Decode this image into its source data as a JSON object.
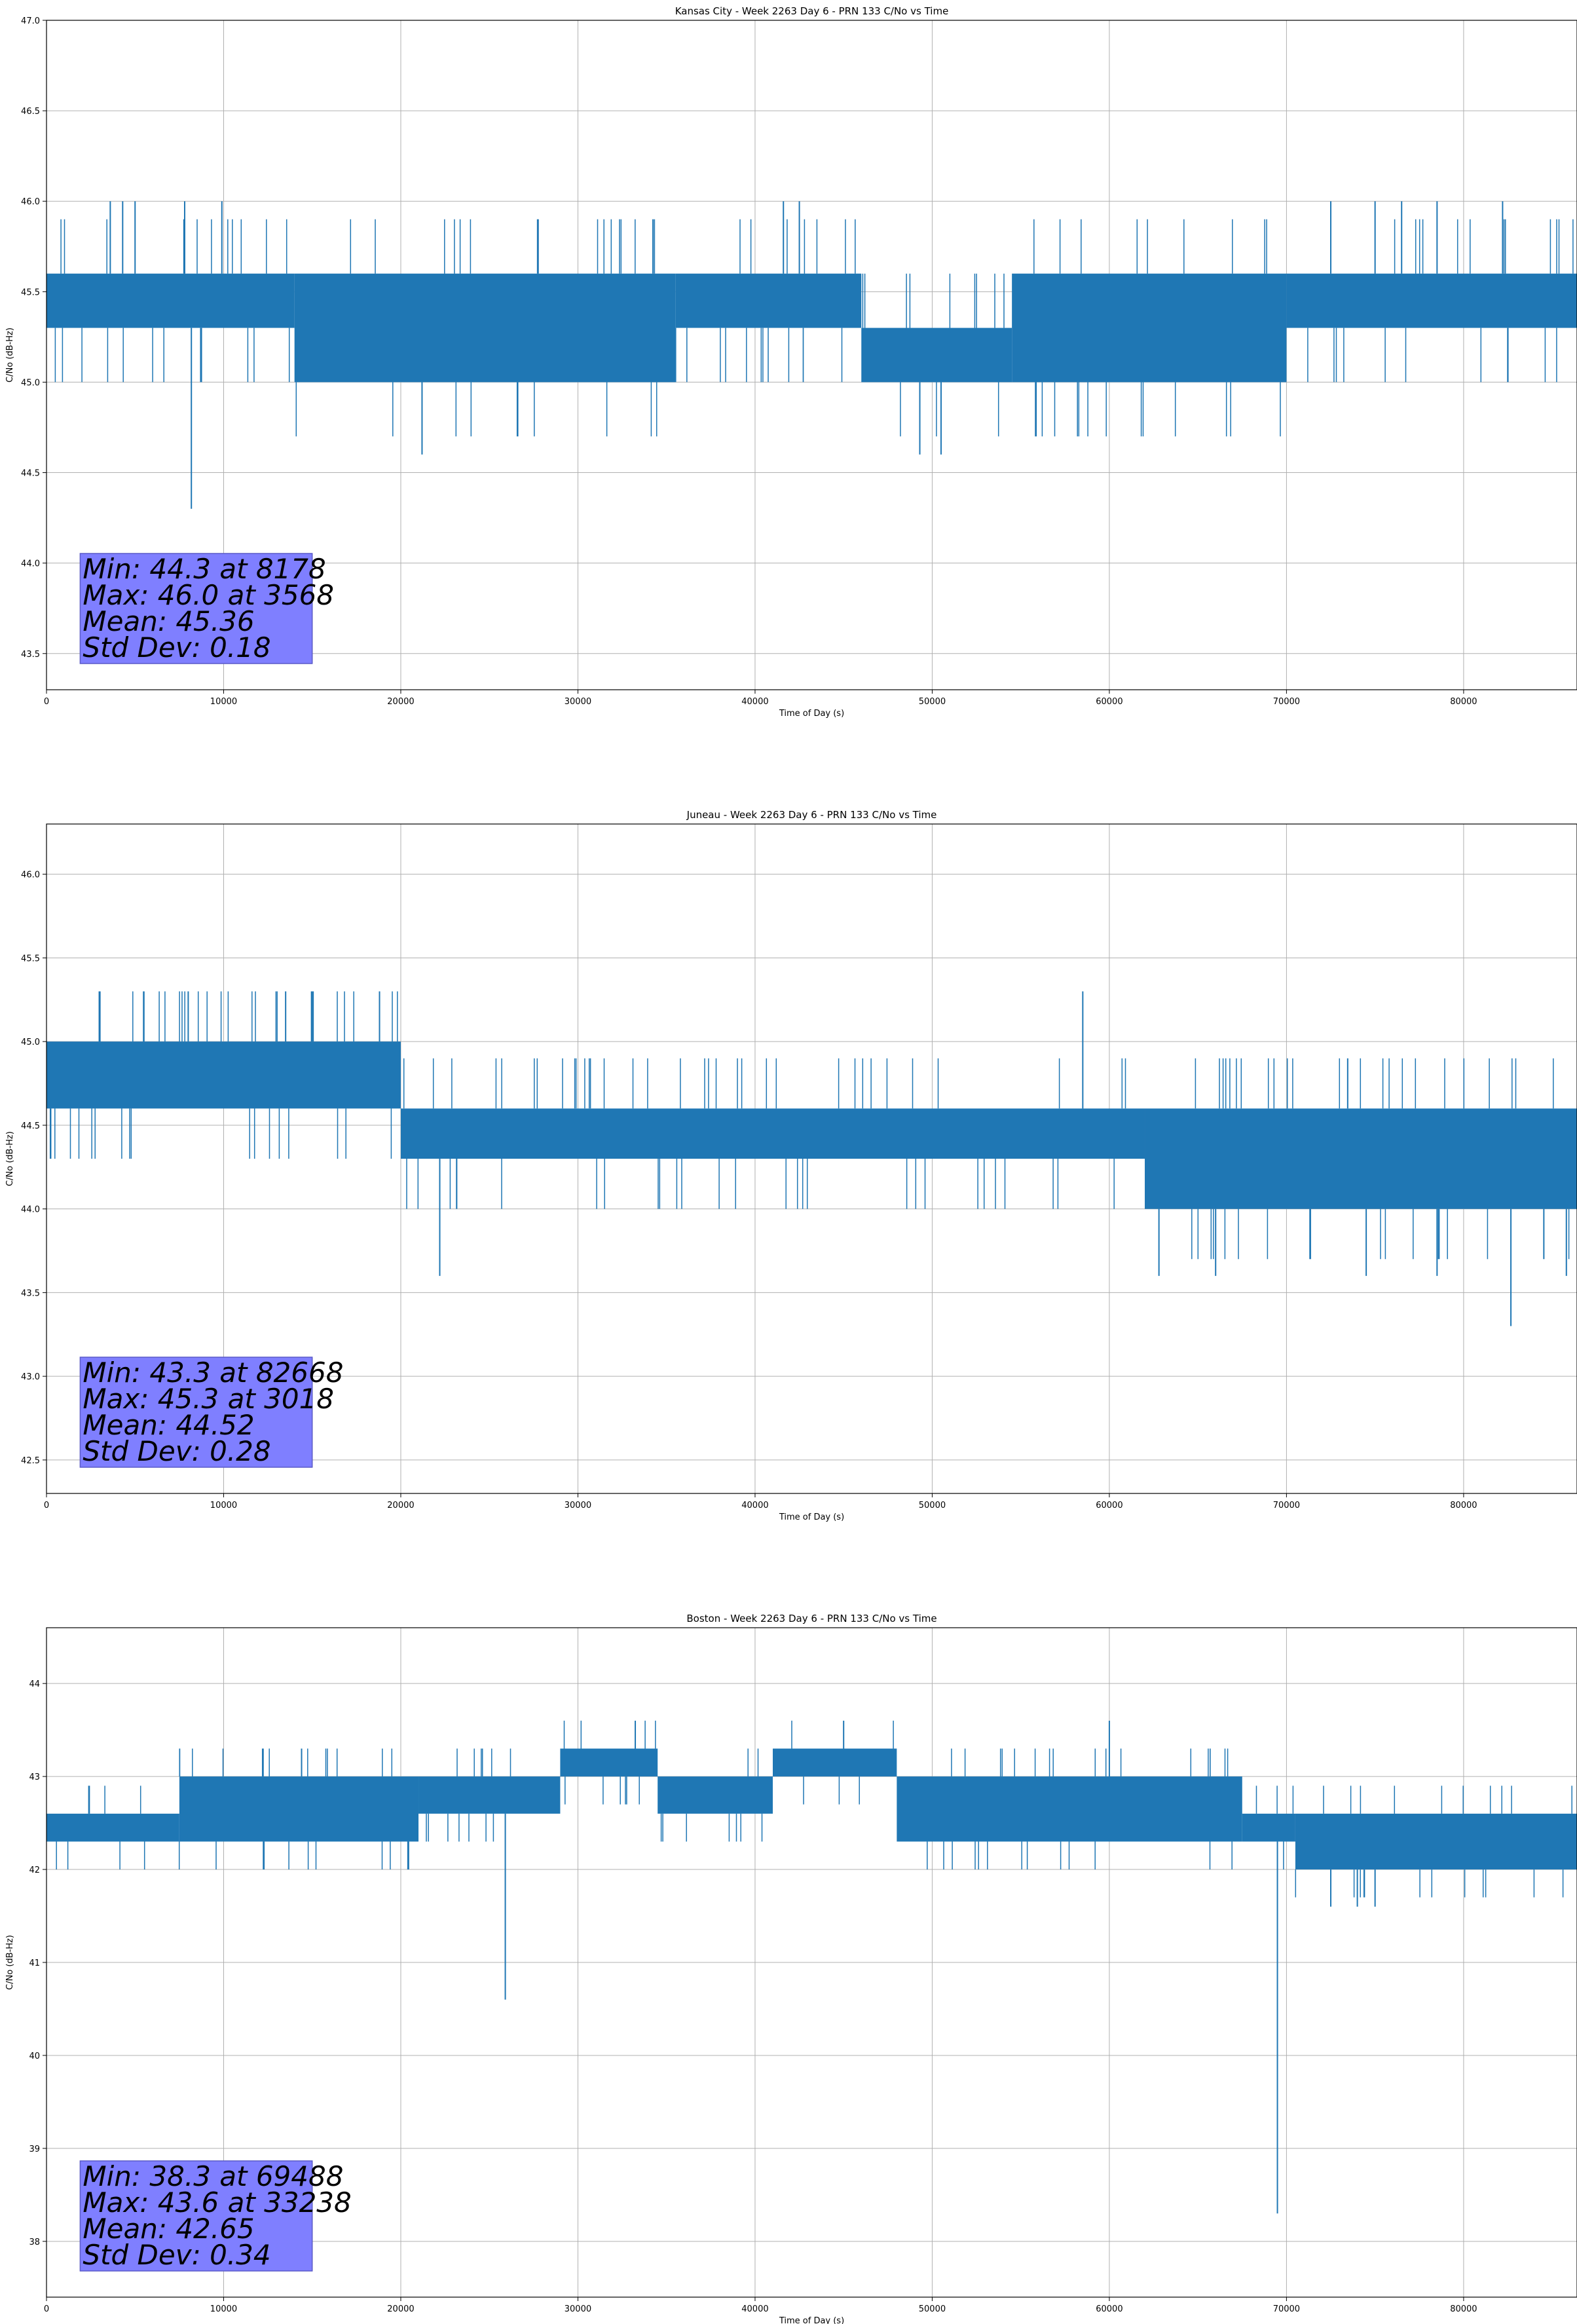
{
  "chart_data": [
    {
      "type": "line",
      "title": "Kansas City - Week 2263 Day 6 - PRN 133 C/No vs Time",
      "xlabel": "Time of Day (s)",
      "ylabel": "C/No (dB-Hz)",
      "xlim": [
        0,
        86400
      ],
      "ylim": [
        43.3,
        47.0
      ],
      "xticks": [
        0,
        10000,
        20000,
        30000,
        40000,
        50000,
        60000,
        70000,
        80000
      ],
      "yticks": [
        43.5,
        44.0,
        44.5,
        45.0,
        45.5,
        46.0,
        46.5,
        47.0
      ],
      "ytick_decimals": 1,
      "grid": true,
      "series_color": "#1f77b4",
      "band_segments": [
        {
          "x0": 0,
          "x1": 14000,
          "lo": 45.3,
          "hi": 45.6
        },
        {
          "x0": 14000,
          "x1": 35500,
          "lo": 45.0,
          "hi": 45.6
        },
        {
          "x0": 35500,
          "x1": 46000,
          "lo": 45.3,
          "hi": 45.6
        },
        {
          "x0": 46000,
          "x1": 54500,
          "lo": 45.0,
          "hi": 45.3
        },
        {
          "x0": 54500,
          "x1": 70000,
          "lo": 45.0,
          "hi": 45.6
        },
        {
          "x0": 70000,
          "x1": 86400,
          "lo": 45.3,
          "hi": 45.6
        }
      ],
      "spikes": [
        {
          "x": 3600,
          "y": 46.0
        },
        {
          "x": 4300,
          "y": 46.0
        },
        {
          "x": 5000,
          "y": 46.0
        },
        {
          "x": 7800,
          "y": 46.0
        },
        {
          "x": 9900,
          "y": 46.0
        },
        {
          "x": 8178,
          "y": 44.3
        },
        {
          "x": 21200,
          "y": 44.6
        },
        {
          "x": 41600,
          "y": 46.0
        },
        {
          "x": 42500,
          "y": 46.0
        },
        {
          "x": 49300,
          "y": 44.6
        },
        {
          "x": 50500,
          "y": 44.6
        },
        {
          "x": 72500,
          "y": 46.0
        },
        {
          "x": 75000,
          "y": 46.0
        },
        {
          "x": 76500,
          "y": 46.0
        },
        {
          "x": 78500,
          "y": 46.0
        },
        {
          "x": 82200,
          "y": 46.0
        }
      ],
      "stats": {
        "lines": [
          "Min: 44.3 at 8178",
          "Max: 46.0 at 3568",
          "Mean: 45.36",
          "Std Dev: 0.18"
        ],
        "box_color": "#7f7fff"
      }
    },
    {
      "type": "line",
      "title": "Juneau - Week 2263 Day 6 - PRN 133 C/No vs Time",
      "xlabel": "Time of Day (s)",
      "ylabel": "C/No (dB-Hz)",
      "xlim": [
        0,
        86400
      ],
      "ylim": [
        42.3,
        46.3
      ],
      "xticks": [
        0,
        10000,
        20000,
        30000,
        40000,
        50000,
        60000,
        70000,
        80000
      ],
      "yticks": [
        42.5,
        43.0,
        43.5,
        44.0,
        44.5,
        45.0,
        45.5,
        46.0
      ],
      "ytick_decimals": 1,
      "grid": true,
      "series_color": "#1f77b4",
      "band_segments": [
        {
          "x0": 0,
          "x1": 20000,
          "lo": 44.6,
          "hi": 45.0
        },
        {
          "x0": 20000,
          "x1": 62000,
          "lo": 44.3,
          "hi": 44.6
        },
        {
          "x0": 62000,
          "x1": 86400,
          "lo": 44.0,
          "hi": 44.6
        }
      ],
      "spikes": [
        {
          "x": 3018,
          "y": 45.3
        },
        {
          "x": 5500,
          "y": 45.3
        },
        {
          "x": 8000,
          "y": 45.3
        },
        {
          "x": 13500,
          "y": 45.3
        },
        {
          "x": 15000,
          "y": 45.3
        },
        {
          "x": 18800,
          "y": 45.3
        },
        {
          "x": 22200,
          "y": 43.6
        },
        {
          "x": 58500,
          "y": 45.3
        },
        {
          "x": 62800,
          "y": 43.6
        },
        {
          "x": 66000,
          "y": 43.6
        },
        {
          "x": 74500,
          "y": 43.6
        },
        {
          "x": 78500,
          "y": 43.6
        },
        {
          "x": 82668,
          "y": 43.3
        },
        {
          "x": 85800,
          "y": 43.6
        }
      ],
      "stats": {
        "lines": [
          "Min: 43.3 at 82668",
          "Max: 45.3 at 3018",
          "Mean: 44.52",
          "Std Dev: 0.28"
        ],
        "box_color": "#7f7fff"
      }
    },
    {
      "type": "line",
      "title": "Boston - Week 2263 Day 6 - PRN 133 C/No vs Time",
      "xlabel": "Time of Day (s)",
      "ylabel": "C/No (dB-Hz)",
      "xlim": [
        0,
        86400
      ],
      "ylim": [
        37.4,
        44.6
      ],
      "xticks": [
        0,
        10000,
        20000,
        30000,
        40000,
        50000,
        60000,
        70000,
        80000
      ],
      "yticks": [
        38,
        39,
        40,
        41,
        42,
        43,
        44
      ],
      "ytick_decimals": 0,
      "grid": true,
      "series_color": "#1f77b4",
      "band_segments": [
        {
          "x0": 0,
          "x1": 7500,
          "lo": 42.3,
          "hi": 42.6
        },
        {
          "x0": 7500,
          "x1": 21000,
          "lo": 42.3,
          "hi": 43.0
        },
        {
          "x0": 21000,
          "x1": 29000,
          "lo": 42.6,
          "hi": 43.0
        },
        {
          "x0": 29000,
          "x1": 34500,
          "lo": 43.0,
          "hi": 43.3
        },
        {
          "x0": 34500,
          "x1": 41000,
          "lo": 42.6,
          "hi": 43.0
        },
        {
          "x0": 41000,
          "x1": 48000,
          "lo": 43.0,
          "hi": 43.3
        },
        {
          "x0": 48000,
          "x1": 67500,
          "lo": 42.3,
          "hi": 43.0
        },
        {
          "x0": 67500,
          "x1": 70500,
          "lo": 42.3,
          "hi": 42.6
        },
        {
          "x0": 70500,
          "x1": 86400,
          "lo": 42.0,
          "hi": 42.6
        }
      ],
      "spikes": [
        {
          "x": 14400,
          "y": 43.3
        },
        {
          "x": 25900,
          "y": 40.6
        },
        {
          "x": 33238,
          "y": 43.6
        },
        {
          "x": 45000,
          "y": 43.6
        },
        {
          "x": 60000,
          "y": 43.6
        },
        {
          "x": 69488,
          "y": 38.3
        },
        {
          "x": 72500,
          "y": 41.6
        },
        {
          "x": 74000,
          "y": 41.6
        },
        {
          "x": 75000,
          "y": 41.6
        }
      ],
      "stats": {
        "lines": [
          "Min: 38.3 at 69488",
          "Max: 43.6 at 33238",
          "Mean: 42.65",
          "Std Dev: 0.34"
        ],
        "box_color": "#7f7fff"
      }
    }
  ]
}
